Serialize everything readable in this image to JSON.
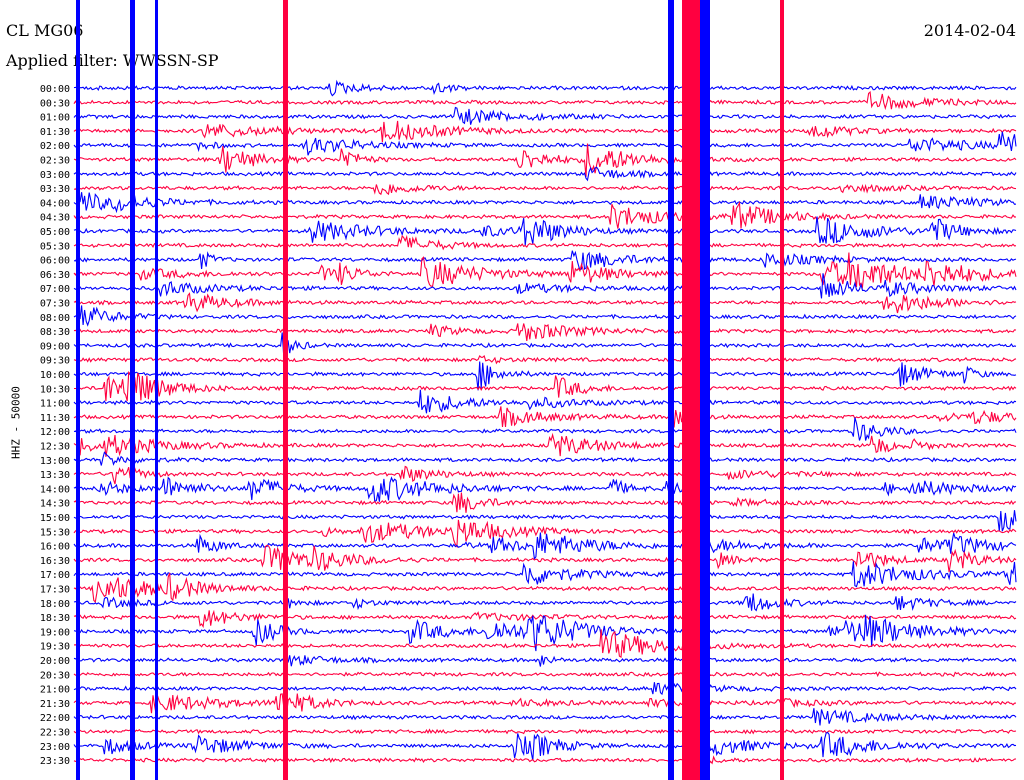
{
  "header": {
    "station": "CL MG06",
    "date": "2014-02-04",
    "filter": "Applied filter: WWSSN-SP"
  },
  "chart_data": {
    "type": "line",
    "title": "CL MG06",
    "subtitle": "Applied filter: WWSSN-SP",
    "ylabel": "HHZ - 50000",
    "xlabel": "",
    "row_labels": [
      "00:00",
      "00:30",
      "01:00",
      "01:30",
      "02:00",
      "02:30",
      "03:00",
      "03:30",
      "04:00",
      "04:30",
      "05:00",
      "05:30",
      "06:00",
      "06:30",
      "07:00",
      "07:30",
      "08:00",
      "08:30",
      "09:00",
      "09:30",
      "10:00",
      "10:30",
      "11:00",
      "11:30",
      "12:00",
      "12:30",
      "13:00",
      "13:30",
      "14:00",
      "14:30",
      "15:00",
      "15:30",
      "16:00",
      "16:30",
      "17:00",
      "17:30",
      "18:00",
      "18:30",
      "19:00",
      "19:30",
      "20:00",
      "20:30",
      "21:00",
      "21:30",
      "22:00",
      "22:30",
      "23:00",
      "23:30"
    ],
    "row_colors": [
      "#0000ff",
      "#ff0040"
    ],
    "minutes_per_row": 30,
    "grid": false
  }
}
